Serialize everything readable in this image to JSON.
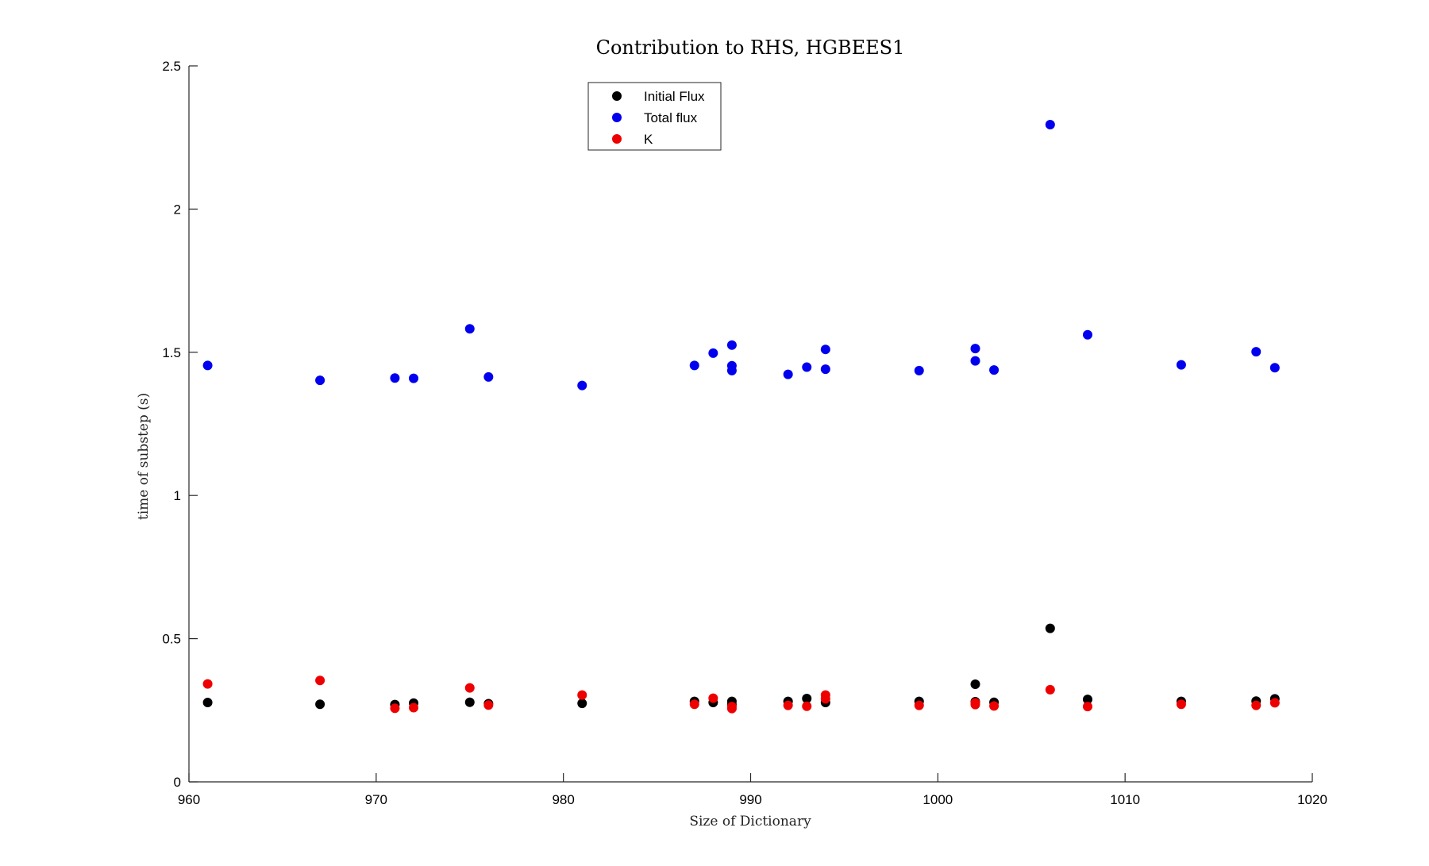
{
  "chart_data": {
    "type": "scatter",
    "title": "Contribution to RHS, HGBEES1",
    "xlabel": "Size of Dictionary",
    "ylabel": "time of substep (s)",
    "xlim": [
      960,
      1020
    ],
    "ylim": [
      0,
      2.5
    ],
    "xticks": [
      960,
      970,
      980,
      990,
      1000,
      1010,
      1020
    ],
    "yticks": [
      0,
      0.5,
      1,
      1.5,
      2,
      2.5
    ],
    "ytick_labels": [
      "0",
      "0.5",
      "1",
      "1.5",
      "2",
      "2.5"
    ],
    "grid": false,
    "legend_position": "top-center",
    "series": [
      {
        "name": "Initial Flux",
        "color": "#000000",
        "x": [
          961,
          967,
          971,
          972,
          975,
          976,
          981,
          987,
          988,
          989,
          989,
          992,
          993,
          994,
          999,
          1002,
          1002,
          1003,
          1006,
          1008,
          1013,
          1017,
          1018
        ],
        "y": [
          0.277,
          0.271,
          0.27,
          0.275,
          0.278,
          0.273,
          0.274,
          0.281,
          0.277,
          0.281,
          0.27,
          0.281,
          0.291,
          0.277,
          0.281,
          0.341,
          0.28,
          0.278,
          0.536,
          0.288,
          0.281,
          0.282,
          0.29
        ]
      },
      {
        "name": "Total flux",
        "color": "#0000ee",
        "x": [
          961,
          967,
          971,
          972,
          975,
          976,
          981,
          987,
          988,
          989,
          989,
          989,
          992,
          993,
          994,
          994,
          999,
          1002,
          1002,
          1003,
          1006,
          1008,
          1013,
          1017,
          1018
        ],
        "y": [
          1.454,
          1.402,
          1.41,
          1.409,
          1.582,
          1.414,
          1.384,
          1.454,
          1.497,
          1.525,
          1.453,
          1.436,
          1.423,
          1.448,
          1.51,
          1.441,
          1.436,
          1.513,
          1.47,
          1.438,
          2.295,
          1.561,
          1.456,
          1.502,
          1.446
        ]
      },
      {
        "name": "K",
        "color": "#ee0000",
        "x": [
          961,
          967,
          971,
          972,
          975,
          976,
          981,
          987,
          988,
          989,
          989,
          992,
          993,
          994,
          994,
          999,
          1002,
          1002,
          1003,
          1006,
          1008,
          1013,
          1017,
          1018
        ],
        "y": [
          0.342,
          0.354,
          0.257,
          0.259,
          0.328,
          0.268,
          0.303,
          0.271,
          0.292,
          0.256,
          0.263,
          0.267,
          0.264,
          0.303,
          0.29,
          0.267,
          0.27,
          0.276,
          0.265,
          0.322,
          0.263,
          0.271,
          0.267,
          0.276
        ]
      }
    ]
  }
}
